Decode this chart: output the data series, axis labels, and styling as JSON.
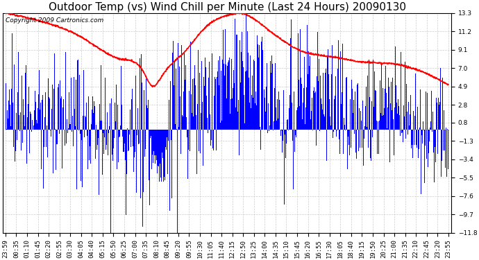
{
  "title": "Outdoor Temp (vs) Wind Chill per Minute (Last 24 Hours) 20090130",
  "copyright_text": "Copyright 2009 Cartronics.com",
  "background_color": "#ffffff",
  "plot_bg_color": "#ffffff",
  "grid_color": "#cccccc",
  "yticks": [
    13.3,
    11.2,
    9.1,
    7.0,
    4.9,
    2.8,
    0.8,
    -1.3,
    -3.4,
    -5.5,
    -7.6,
    -9.7,
    -11.8
  ],
  "ymin": -11.8,
  "ymax": 13.3,
  "xtick_labels": [
    "23:59",
    "00:35",
    "01:10",
    "01:45",
    "02:20",
    "02:55",
    "03:30",
    "04:05",
    "04:40",
    "05:15",
    "05:50",
    "06:25",
    "07:00",
    "07:35",
    "08:10",
    "08:45",
    "09:20",
    "09:55",
    "10:30",
    "11:05",
    "11:40",
    "12:15",
    "12:50",
    "13:25",
    "14:00",
    "14:35",
    "15:10",
    "15:45",
    "16:20",
    "16:55",
    "17:30",
    "18:05",
    "18:40",
    "19:15",
    "19:50",
    "20:25",
    "21:00",
    "21:35",
    "22:10",
    "22:45",
    "23:20",
    "23:55"
  ],
  "red_line_color": "#ff0000",
  "blue_bar_color": "#0000ff",
  "title_fontsize": 11,
  "axis_fontsize": 6.5,
  "copyright_fontsize": 6.5,
  "figwidth": 6.9,
  "figheight": 3.75,
  "dpi": 100
}
